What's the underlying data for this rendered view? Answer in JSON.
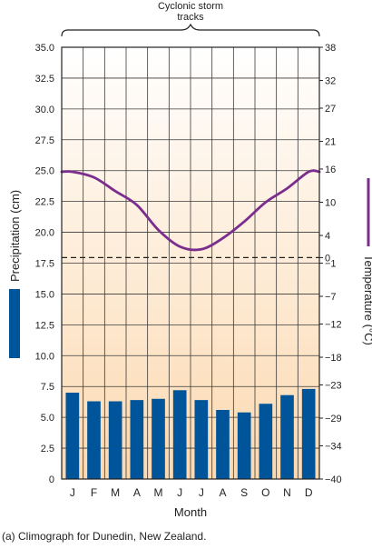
{
  "chart_data": {
    "type": "bar",
    "annotation": {
      "line1": "Cyclonic storm",
      "line2": "tracks"
    },
    "categories": [
      "J",
      "F",
      "M",
      "A",
      "M",
      "J",
      "J",
      "A",
      "S",
      "O",
      "N",
      "D"
    ],
    "xlabel": "Month",
    "series": [
      {
        "name": "Precipitation (cm)",
        "type": "bar",
        "axis": "left",
        "color": "#00549a",
        "values": [
          7.0,
          6.3,
          6.3,
          6.4,
          6.5,
          7.2,
          6.4,
          5.6,
          5.4,
          6.1,
          6.8,
          7.3
        ]
      },
      {
        "name": "Temperature (°C)",
        "type": "line",
        "axis": "right",
        "color": "#7b2d8e",
        "values": [
          15.5,
          14.5,
          12.0,
          9.5,
          5.0,
          2.0,
          1.5,
          3.5,
          6.5,
          10.0,
          12.5,
          15.5
        ]
      }
    ],
    "y_left": {
      "label": "Precipitation (cm)",
      "range": [
        0,
        35
      ],
      "ticks": [
        "0",
        "2.5",
        "5.0",
        "7.5",
        "10.0",
        "12.5",
        "15.0",
        "17.5",
        "20.0",
        "22.5",
        "25.0",
        "27.5",
        "30.0",
        "32.5",
        "35.0"
      ]
    },
    "y_right": {
      "label": "Temperature (°C)",
      "range": [
        -40,
        38
      ],
      "ticks": [
        "−40",
        "−34",
        "−29",
        "−23",
        "−18",
        "−12",
        "−7",
        "−1",
        "0",
        "4",
        "10",
        "16",
        "21",
        "27",
        "32",
        "38"
      ]
    },
    "freezing_line": {
      "temperature": 0,
      "style": "dashed"
    },
    "grid": true,
    "background": {
      "top": "#ffffff",
      "bottom": "#fcd9b0"
    }
  },
  "caption": "(a) Climograph for Dunedin, New Zealand."
}
